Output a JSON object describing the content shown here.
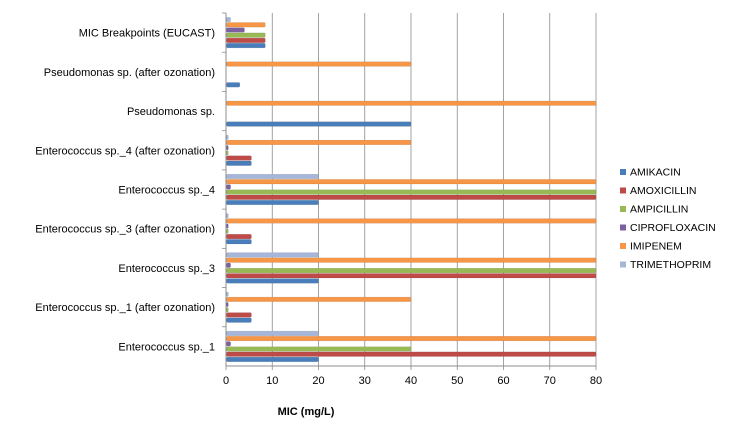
{
  "chart_data": {
    "type": "bar",
    "orientation": "horizontal",
    "title": "",
    "xlabel": "MIC (mg/L)",
    "ylabel": "",
    "xlim": [
      0,
      80
    ],
    "xticks": [
      0,
      10,
      20,
      30,
      40,
      50,
      60,
      70,
      80
    ],
    "grid": "vertical",
    "legend_position": "right",
    "categories": [
      "Enterococcus sp._1",
      "Enterococcus sp._1 (after ozonation)",
      "Enterococcus sp._3",
      "Enterococcus sp._3 (after ozonation)",
      "Enterococcus sp._4",
      "Enterococcus sp._4 (after ozonation)",
      "Pseudomonas sp.",
      "Pseudomonas sp. (after ozonation)",
      "MIC Breakpoints (EUCAST)"
    ],
    "series": [
      {
        "name": "AMIKACIN",
        "color": "#4a7ebb",
        "values": [
          20,
          5.5,
          20,
          5.5,
          20,
          5.5,
          40,
          3,
          8.5
        ]
      },
      {
        "name": "AMOXICILLIN",
        "color": "#be4b48",
        "values": [
          80,
          5.5,
          80,
          5.5,
          80,
          5.5,
          0,
          0,
          8.5
        ]
      },
      {
        "name": "AMPICILLIN",
        "color": "#98b954",
        "values": [
          40,
          0.5,
          80,
          0.5,
          80,
          0.5,
          0,
          0,
          8.5
        ]
      },
      {
        "name": "CIPROFLOXACIN",
        "color": "#7d60a0",
        "values": [
          1,
          0.5,
          1,
          0.5,
          1,
          0.5,
          0,
          0,
          4
        ]
      },
      {
        "name": "IMIPENEM",
        "color": "#f79646",
        "values": [
          80,
          40,
          80,
          80,
          80,
          40,
          80,
          40,
          8.5
        ]
      },
      {
        "name": "TRIMETHOPRIM",
        "color": "#a5b6d8",
        "values": [
          20,
          0.5,
          20,
          0.5,
          20,
          0.5,
          0,
          0,
          1
        ]
      }
    ]
  }
}
